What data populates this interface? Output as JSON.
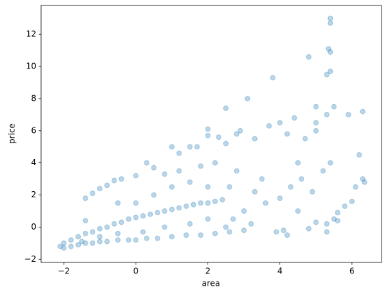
{
  "chart_data": {
    "type": "scatter",
    "xlabel": "area",
    "ylabel": "price",
    "color": "#1f77b4",
    "alpha": 0.3,
    "xlim": [
      -2.63,
      6.82
    ],
    "ylim": [
      -2.2,
      13.8
    ],
    "xticks": [
      {
        "value": -2,
        "label": "−2"
      },
      0,
      2,
      4,
      6
    ],
    "yticks": [
      {
        "value": -2,
        "label": "−2"
      },
      0,
      2,
      4,
      6,
      8,
      10,
      12
    ],
    "x": [
      -2.1,
      -2.0,
      -1.8,
      -1.6,
      -1.4,
      -1.2,
      -1.0,
      -0.8,
      -0.5,
      -0.2,
      0,
      0.3,
      0.6,
      1.0,
      1.4,
      1.8,
      2.2,
      2.6,
      3.0,
      -2.0,
      -1.8,
      -1.6,
      -1.4,
      -1.2,
      -1.0,
      -0.8,
      -0.6,
      -0.4,
      -0.2,
      0,
      0.2,
      0.4,
      0.6,
      0.8,
      1.0,
      1.2,
      1.4,
      1.6,
      1.8,
      2.0,
      2.2,
      2.4,
      -1.4,
      -1.4,
      -1.2,
      -1.0,
      -0.8,
      -0.6,
      -0.4,
      0,
      0.3,
      0.5,
      0.8,
      1.0,
      1.2,
      1.5,
      1.7,
      2.0,
      2.0,
      2.3,
      2.5,
      2.8,
      2.9,
      3.3,
      3.7,
      3.8,
      3.1,
      2.5,
      4.0,
      4.2,
      4.4,
      4.5,
      4.7,
      5.0,
      5.0,
      5.0,
      4.8,
      5.3,
      5.4,
      5.4,
      5.35,
      5.4,
      5.3,
      5.4,
      5.5,
      5.9,
      6.3,
      6.2,
      6.3,
      6.35,
      6.1,
      6.0,
      5.8,
      5.6,
      5.5,
      5.3,
      5.0,
      4.8,
      4.5,
      4.1,
      4.2,
      3.9,
      5.3,
      5.6,
      4.0,
      4.3,
      4.6,
      4.9,
      5.2,
      5.4,
      3.6,
      3.5,
      3.3,
      3.0,
      3.2,
      2.8,
      2.6,
      2.7,
      0.5,
      1.0,
      1.5,
      2.0,
      0,
      -0.5,
      0.8,
      1.5,
      2.0,
      1.2,
      1.8,
      2.2,
      0.2,
      -0.5,
      -1.0,
      -1.5,
      2.5
    ],
    "y": [
      -1.2,
      -1.3,
      -1.2,
      -1.1,
      -1.0,
      -1.0,
      -0.9,
      -0.9,
      -0.8,
      -0.8,
      -0.8,
      -0.7,
      -0.7,
      -0.6,
      -0.5,
      -0.5,
      -0.4,
      -0.3,
      -0.2,
      -1.0,
      -0.8,
      -0.6,
      -0.4,
      -0.3,
      -0.1,
      0,
      0.2,
      0.3,
      0.5,
      0.6,
      0.7,
      0.8,
      0.9,
      1.0,
      1.1,
      1.2,
      1.3,
      1.4,
      1.5,
      1.5,
      1.6,
      1.7,
      0.4,
      1.8,
      2.1,
      2.4,
      2.6,
      2.9,
      3.0,
      3.2,
      4.0,
      3.7,
      3.3,
      5.0,
      4.6,
      5.0,
      5.0,
      5.7,
      6.1,
      5.6,
      5.2,
      5.8,
      6.0,
      5.5,
      6.3,
      9.3,
      8.0,
      7.4,
      6.5,
      5.8,
      6.8,
      4.0,
      5.5,
      6.5,
      6.0,
      7.5,
      10.6,
      7.0,
      13.0,
      12.7,
      11.1,
      10.9,
      9.5,
      9.7,
      7.5,
      7.0,
      7.2,
      4.5,
      3.0,
      2.8,
      2.5,
      1.6,
      1.3,
      0.9,
      0.5,
      0.2,
      0.3,
      -0.1,
      1.0,
      -0.2,
      -0.5,
      -0.3,
      -0.3,
      0.4,
      1.8,
      2.5,
      3.0,
      2.2,
      3.5,
      4.0,
      1.5,
      3.0,
      2.2,
      1.0,
      0.2,
      3.5,
      2.5,
      0.5,
      2.0,
      2.5,
      2.8,
      2.5,
      1.5,
      1.5,
      0,
      0.2,
      0.5,
      3.5,
      3.8,
      4.0,
      -0.3,
      -0.4,
      -0.6,
      -0.9,
      0
    ]
  }
}
